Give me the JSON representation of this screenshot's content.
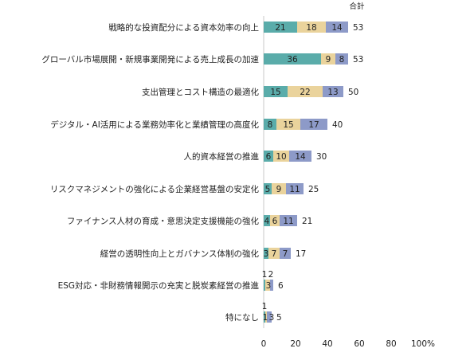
{
  "chart_data": {
    "type": "bar",
    "orientation": "horizontal",
    "stacked": true,
    "total_header": "合計",
    "categories": [
      "戦略的な投資配分による資本効率の向上",
      "グローバル市場展開・新規事業開発による売上成長の加速",
      "支出管理とコスト構造の最適化",
      "デジタル・AI活用による業務効率化と業績管理の高度化",
      "人的資本経営の推進",
      "リスクマネジメントの強化による企業経営基盤の安定化",
      "ファイナンス人材の育成・意思決定支援機能の強化",
      "経営の透明性向上とガバナンス体制の強化",
      "ESG対応・非財務情報開示の充実と脱炭素経営の推進",
      "特になし"
    ],
    "series": [
      {
        "values": [
          21,
          36,
          15,
          8,
          6,
          5,
          4,
          3,
          1,
          1
        ]
      },
      {
        "values": [
          18,
          9,
          22,
          15,
          10,
          9,
          6,
          7,
          3,
          1
        ]
      },
      {
        "values": [
          14,
          8,
          13,
          17,
          14,
          11,
          11,
          7,
          2,
          3
        ]
      }
    ],
    "segment_labels": [
      [
        "21",
        "18",
        "14"
      ],
      [
        "36",
        "9",
        "8"
      ],
      [
        "15",
        "22",
        "13"
      ],
      [
        "8",
        "15",
        "17"
      ],
      [
        "6",
        "10",
        "14"
      ],
      [
        "5",
        "9",
        "11"
      ],
      [
        "4",
        "6",
        "11"
      ],
      [
        "3",
        "7",
        "7"
      ],
      [
        "1",
        "3",
        "2"
      ],
      [
        "1",
        "1",
        "3"
      ]
    ],
    "totals": [
      53,
      53,
      50,
      40,
      30,
      25,
      21,
      17,
      6,
      5
    ],
    "xticks": [
      "0",
      "20",
      "40",
      "60",
      "80",
      "100%"
    ],
    "xlim": [
      0,
      100
    ],
    "grid": false,
    "legend": "none",
    "colors": [
      "#5aacaa",
      "#ead39c",
      "#8d9ac8"
    ]
  }
}
